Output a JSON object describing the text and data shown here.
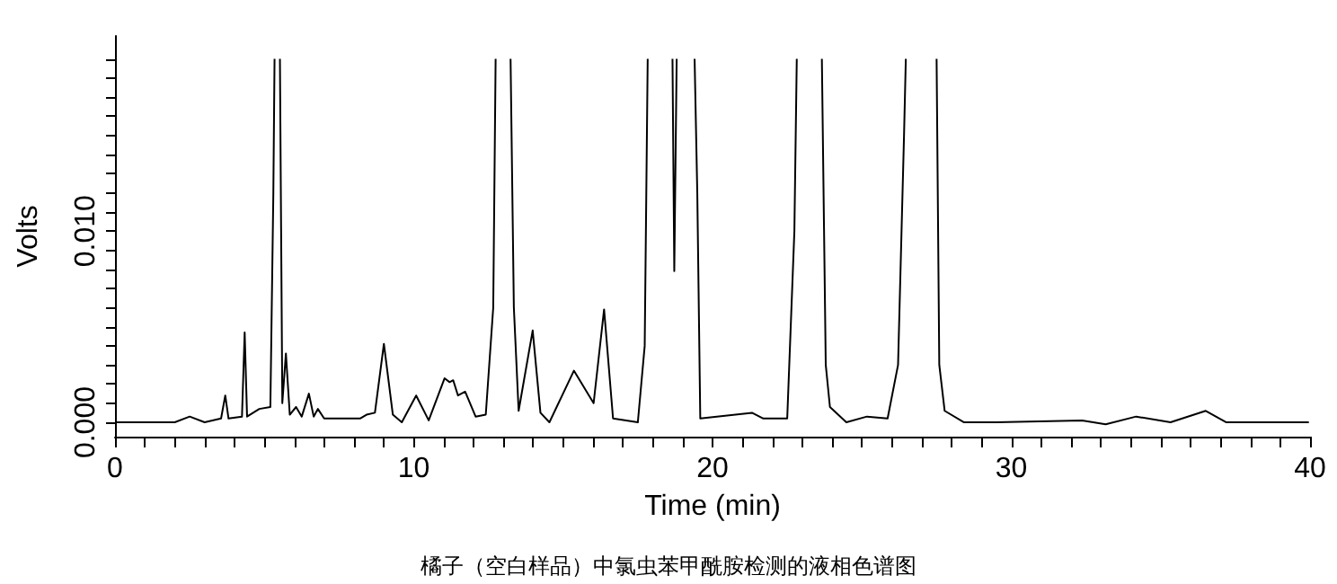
{
  "chart_data": {
    "type": "line",
    "xlabel": "Time (min)",
    "ylabel": "Volts",
    "annotations": [
      "橘子（空白样品）中氯虫苯甲酰胺检测的液相色谱图"
    ],
    "x": [
      0,
      2.0,
      2.5,
      3.0,
      3.55,
      3.69,
      3.8,
      4.25,
      4.34,
      4.42,
      4.83,
      5.2,
      5.3,
      5.34,
      5.45,
      5.52,
      5.6,
      5.72,
      5.85,
      6.06,
      6.25,
      6.49,
      6.65,
      6.79,
      7.0,
      8.2,
      8.42,
      8.7,
      9.0,
      9.3,
      9.6,
      10.08,
      10.5,
      11.03,
      11.2,
      11.32,
      11.48,
      11.72,
      12.07,
      12.41,
      12.66,
      12.74,
      13.0,
      13.24,
      13.35,
      13.51,
      13.98,
      14.24,
      14.54,
      15.36,
      16.02,
      16.37,
      16.67,
      17.5,
      17.73,
      17.83,
      18.2,
      18.66,
      18.72,
      18.8,
      19.1,
      19.4,
      19.49,
      19.59,
      21.32,
      21.7,
      22.5,
      22.74,
      22.82,
      23.2,
      23.66,
      23.79,
      23.93,
      24.48,
      25.17,
      25.86,
      26.21,
      26.41,
      26.47,
      27.0,
      27.5,
      27.59,
      27.77,
      28.42,
      29.5,
      32.37,
      33.16,
      34.18,
      35.33,
      36.51,
      37.2,
      39.96
    ],
    "series": [
      {
        "color": "#000000",
        "values": [
          0.0,
          0.0,
          0.0003,
          0.0,
          0.0002,
          0.0014,
          0.0002,
          0.0003,
          0.0047,
          0.0003,
          0.0007,
          0.0008,
          0.012,
          0.019,
          null,
          0.019,
          0.001,
          0.0036,
          0.0004,
          0.0008,
          0.0003,
          0.0015,
          0.0003,
          0.0007,
          0.0002,
          0.0002,
          0.0004,
          0.0005,
          0.0041,
          0.0004,
          0.0,
          0.0014,
          0.0001,
          0.0023,
          0.0021,
          0.0022,
          0.0014,
          0.0016,
          0.0003,
          0.0004,
          0.006,
          0.019,
          null,
          0.019,
          0.006,
          0.0006,
          0.0048,
          0.0005,
          0.0,
          0.0027,
          0.001,
          0.0059,
          0.0002,
          0.0,
          0.004,
          0.019,
          null,
          0.019,
          0.0079,
          0.019,
          null,
          0.019,
          0.012,
          0.0002,
          0.0005,
          0.0002,
          0.0002,
          0.01,
          0.019,
          null,
          0.019,
          0.003,
          0.0008,
          0.0,
          0.0003,
          0.0002,
          0.003,
          0.015,
          0.019,
          null,
          0.019,
          0.003,
          0.0006,
          0.0,
          0.0,
          0.0001,
          -0.0001,
          0.0003,
          0.0,
          0.0006,
          0.0,
          0.0
        ]
      }
    ],
    "xlim": [
      0,
      40
    ],
    "ylim": [
      -0.00075,
      0.0202
    ],
    "xticks": [
      0,
      {
        "value": 1,
        "label": null
      },
      {
        "value": 2,
        "label": null
      },
      {
        "value": 3,
        "label": null
      },
      {
        "value": 4,
        "label": null
      },
      {
        "value": 5,
        "label": null
      },
      {
        "value": 6,
        "label": null
      },
      {
        "value": 7,
        "label": null
      },
      {
        "value": 8,
        "label": null
      },
      {
        "value": 9,
        "label": null
      },
      10,
      {
        "value": 11,
        "label": null
      },
      {
        "value": 12,
        "label": null
      },
      {
        "value": 13,
        "label": null
      },
      {
        "value": 14,
        "label": null
      },
      {
        "value": 15,
        "label": null
      },
      {
        "value": 16,
        "label": null
      },
      {
        "value": 17,
        "label": null
      },
      {
        "value": 18,
        "label": null
      },
      {
        "value": 19,
        "label": null
      },
      20,
      {
        "value": 21,
        "label": null
      },
      {
        "value": 22,
        "label": null
      },
      {
        "value": 23,
        "label": null
      },
      {
        "value": 24,
        "label": null
      },
      {
        "value": 25,
        "label": null
      },
      {
        "value": 26,
        "label": null
      },
      {
        "value": 27,
        "label": null
      },
      {
        "value": 28,
        "label": null
      },
      {
        "value": 29,
        "label": null
      },
      30,
      {
        "value": 31,
        "label": null
      },
      {
        "value": 32,
        "label": null
      },
      {
        "value": 33,
        "label": null
      },
      {
        "value": 34,
        "label": null
      },
      {
        "value": 35,
        "label": null
      },
      {
        "value": 36,
        "label": null
      },
      {
        "value": 37,
        "label": null
      },
      {
        "value": 38,
        "label": null
      },
      {
        "value": 39,
        "label": null
      },
      40
    ],
    "yticks": [
      {
        "value": 0,
        "label": "0.000"
      },
      {
        "value": 0.001,
        "label": null
      },
      {
        "value": 0.002,
        "label": null
      },
      {
        "value": 0.003,
        "label": null
      },
      {
        "value": 0.004,
        "label": null
      },
      {
        "value": 0.005,
        "label": null
      },
      {
        "value": 0.006,
        "label": null
      },
      {
        "value": 0.007,
        "label": null
      },
      {
        "value": 0.008,
        "label": null
      },
      {
        "value": 0.009,
        "label": null
      },
      {
        "value": 0.01,
        "label": "0.010"
      },
      {
        "value": 0.011,
        "label": null
      },
      {
        "value": 0.012,
        "label": null
      },
      {
        "value": 0.013,
        "label": null
      },
      {
        "value": 0.014,
        "label": null
      },
      {
        "value": 0.015,
        "label": null
      },
      {
        "value": 0.016,
        "label": null
      },
      {
        "value": 0.017,
        "label": null
      },
      {
        "value": 0.018,
        "label": null
      },
      {
        "value": 0.019,
        "label": null
      }
    ],
    "grid": false,
    "marker": "none",
    "line_style": "solid"
  }
}
